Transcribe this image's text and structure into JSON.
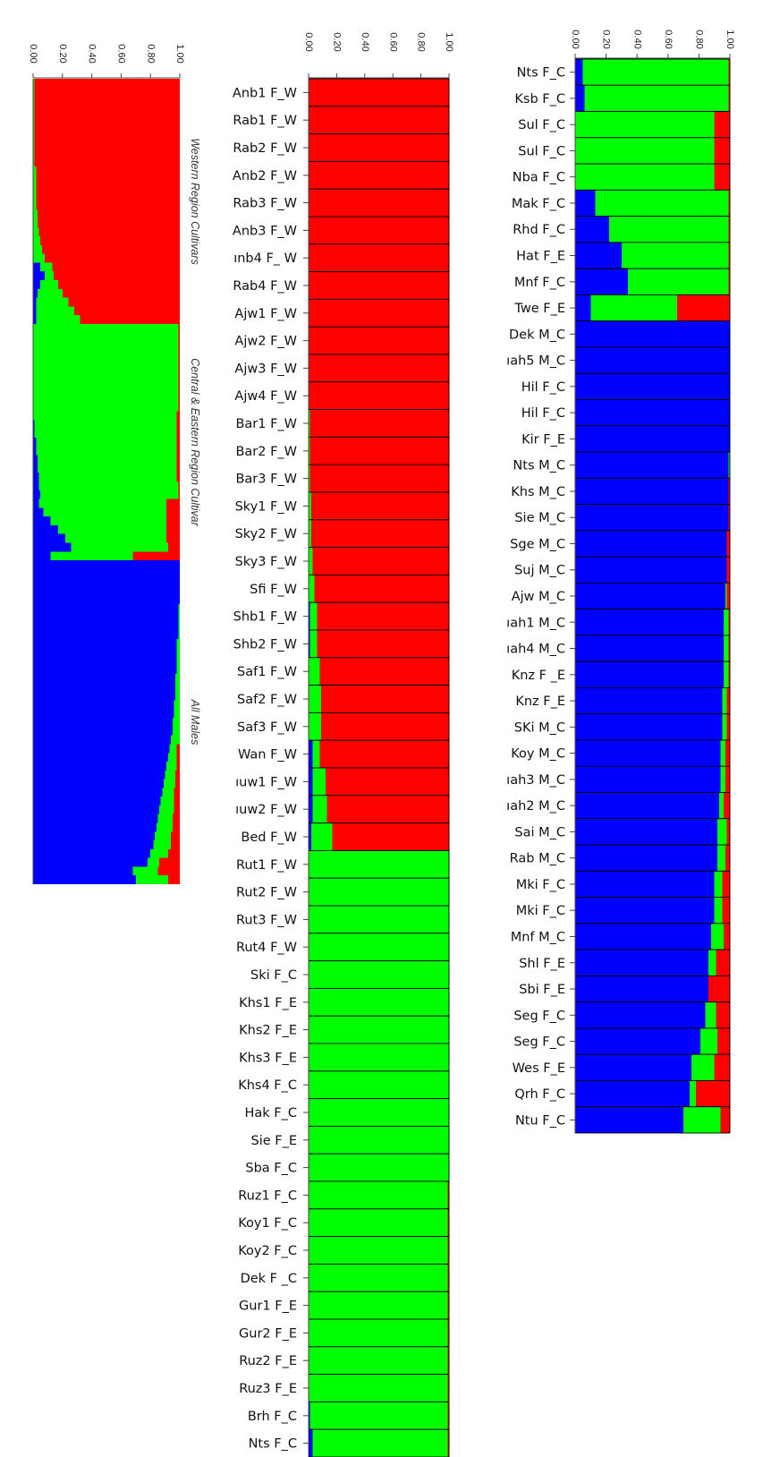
{
  "colors": {
    "blue": "#0000ff",
    "green": "#00ff00",
    "red": "#ff0000",
    "edge": "#000000"
  },
  "chart_data": [
    {
      "type": "bar",
      "orientation": "horizontal",
      "stacked": true,
      "xlim": [
        0,
        1
      ],
      "ticks": [
        "0.00",
        "0.20",
        "0.40",
        "0.60",
        "0.80",
        "1.00"
      ],
      "segment_order": [
        "blue",
        "green",
        "red"
      ],
      "regions": [
        {
          "label": "Western Region Cultivars",
          "start": 0,
          "end": 28
        },
        {
          "label": "Central & Eastern Region Cultivar",
          "start": 28,
          "end": 55
        },
        {
          "label": "All Males",
          "start": 55,
          "end": 92
        }
      ],
      "bars": [
        [
          0.0,
          0.01,
          0.99
        ],
        [
          0.0,
          0.01,
          0.99
        ],
        [
          0.0,
          0.01,
          0.99
        ],
        [
          0.0,
          0.01,
          0.99
        ],
        [
          0.0,
          0.01,
          0.99
        ],
        [
          0.0,
          0.01,
          0.99
        ],
        [
          0.0,
          0.01,
          0.99
        ],
        [
          0.0,
          0.01,
          0.99
        ],
        [
          0.0,
          0.01,
          0.99
        ],
        [
          0.0,
          0.01,
          0.99
        ],
        [
          0.0,
          0.02,
          0.98
        ],
        [
          0.0,
          0.02,
          0.98
        ],
        [
          0.0,
          0.02,
          0.98
        ],
        [
          0.0,
          0.02,
          0.98
        ],
        [
          0.0,
          0.02,
          0.98
        ],
        [
          0.0,
          0.03,
          0.97
        ],
        [
          0.0,
          0.03,
          0.97
        ],
        [
          0.0,
          0.04,
          0.96
        ],
        [
          0.0,
          0.05,
          0.95
        ],
        [
          0.0,
          0.06,
          0.94
        ],
        [
          0.0,
          0.08,
          0.92
        ],
        [
          0.05,
          0.08,
          0.87
        ],
        [
          0.08,
          0.06,
          0.86
        ],
        [
          0.05,
          0.12,
          0.83
        ],
        [
          0.03,
          0.17,
          0.8
        ],
        [
          0.02,
          0.22,
          0.76
        ],
        [
          0.02,
          0.26,
          0.72
        ],
        [
          0.02,
          0.3,
          0.68
        ],
        [
          0.0,
          0.99,
          0.01
        ],
        [
          0.0,
          0.99,
          0.01
        ],
        [
          0.0,
          0.99,
          0.01
        ],
        [
          0.0,
          0.99,
          0.01
        ],
        [
          0.0,
          0.99,
          0.01
        ],
        [
          0.0,
          0.99,
          0.01
        ],
        [
          0.0,
          0.99,
          0.01
        ],
        [
          0.0,
          0.99,
          0.01
        ],
        [
          0.0,
          0.99,
          0.01
        ],
        [
          0.0,
          0.99,
          0.01
        ],
        [
          0.0,
          0.98,
          0.02
        ],
        [
          0.01,
          0.97,
          0.02
        ],
        [
          0.01,
          0.97,
          0.02
        ],
        [
          0.02,
          0.96,
          0.02
        ],
        [
          0.02,
          0.96,
          0.02
        ],
        [
          0.03,
          0.95,
          0.02
        ],
        [
          0.03,
          0.95,
          0.02
        ],
        [
          0.04,
          0.94,
          0.02
        ],
        [
          0.04,
          0.95,
          0.01
        ],
        [
          0.05,
          0.94,
          0.01
        ],
        [
          0.04,
          0.87,
          0.09
        ],
        [
          0.07,
          0.84,
          0.09
        ],
        [
          0.12,
          0.79,
          0.09
        ],
        [
          0.17,
          0.74,
          0.09
        ],
        [
          0.22,
          0.69,
          0.09
        ],
        [
          0.26,
          0.66,
          0.08
        ],
        [
          0.12,
          0.56,
          0.32
        ],
        [
          1.0,
          0.0,
          0.0
        ],
        [
          1.0,
          0.0,
          0.0
        ],
        [
          1.0,
          0.0,
          0.0
        ],
        [
          1.0,
          0.0,
          0.0
        ],
        [
          1.0,
          0.0,
          0.0
        ],
        [
          0.99,
          0.01,
          0.0
        ],
        [
          0.99,
          0.01,
          0.0
        ],
        [
          0.99,
          0.01,
          0.0
        ],
        [
          0.99,
          0.01,
          0.0
        ],
        [
          0.98,
          0.02,
          0.0
        ],
        [
          0.98,
          0.02,
          0.0
        ],
        [
          0.98,
          0.02,
          0.0
        ],
        [
          0.98,
          0.02,
          0.0
        ],
        [
          0.97,
          0.03,
          0.0
        ],
        [
          0.97,
          0.03,
          0.0
        ],
        [
          0.97,
          0.03,
          0.0
        ],
        [
          0.96,
          0.04,
          0.0
        ],
        [
          0.96,
          0.04,
          0.0
        ],
        [
          0.95,
          0.05,
          0.0
        ],
        [
          0.95,
          0.05,
          0.0
        ],
        [
          0.94,
          0.06,
          0.0
        ],
        [
          0.93,
          0.05,
          0.02
        ],
        [
          0.92,
          0.06,
          0.02
        ],
        [
          0.91,
          0.07,
          0.02
        ],
        [
          0.9,
          0.07,
          0.03
        ],
        [
          0.89,
          0.08,
          0.03
        ],
        [
          0.88,
          0.08,
          0.04
        ],
        [
          0.87,
          0.09,
          0.04
        ],
        [
          0.86,
          0.1,
          0.04
        ],
        [
          0.85,
          0.1,
          0.05
        ],
        [
          0.84,
          0.11,
          0.05
        ],
        [
          0.83,
          0.11,
          0.06
        ],
        [
          0.82,
          0.12,
          0.06
        ],
        [
          0.8,
          0.12,
          0.08
        ],
        [
          0.78,
          0.08,
          0.14
        ],
        [
          0.68,
          0.17,
          0.15
        ],
        [
          0.7,
          0.22,
          0.08
        ]
      ]
    },
    {
      "type": "bar",
      "orientation": "horizontal",
      "stacked": true,
      "xlim": [
        0,
        1
      ],
      "ticks": [
        "0.00",
        "0.20",
        "0.40",
        "0.60",
        "0.80",
        "1.00"
      ],
      "segment_order": [
        "blue",
        "green",
        "red"
      ],
      "categories": [
        "Anb1 F_W",
        "Rab1 F_W",
        "Rab2 F_W",
        "Anb2 F_W",
        "Rab3 F_W",
        "Anb3 F_W",
        "ınb4 F_ W",
        "Rab4 F_W",
        "Ajw1 F_W",
        "Ajw2 F_W",
        "Ajw3 F_W",
        "Ajw4 F_W",
        "Bar1 F_W",
        "Bar2 F_W",
        "Bar3 F_W",
        "Sky1 F_W",
        "Sky2 F_W",
        "Sky3 F_W",
        "Sfi F_W",
        "Shb1 F_W",
        "Shb2 F_W",
        "Saf1 F_W",
        "Saf2 F_W",
        "Saf3 F_W",
        "Wan F_W",
        "ıuw1 F_W",
        "ıuw2 F_W",
        "Bed F_W",
        "Rut1 F_W",
        "Rut2 F_W",
        "Rut3 F_W",
        "Rut4 F_W",
        "Ski F_C",
        "Khs1 F_E",
        "Khs2 F_E",
        "Khs3 F_E",
        "Khs4 F_C",
        "Hak F_C",
        "Sie F_E",
        "Sba F_C",
        "Ruz1 F_C",
        "Koy1 F_C",
        "Koy2 F_C",
        "Dek F _C",
        "Gur1 F_E",
        "Gur2 F_E",
        "Ruz2 F_E",
        "Ruz3 F_E",
        "Brh F_C",
        "Nts F_C"
      ],
      "bars": [
        [
          0.0,
          0.0,
          1.0
        ],
        [
          0.0,
          0.0,
          1.0
        ],
        [
          0.0,
          0.0,
          1.0
        ],
        [
          0.0,
          0.0,
          1.0
        ],
        [
          0.0,
          0.0,
          1.0
        ],
        [
          0.0,
          0.0,
          1.0
        ],
        [
          0.0,
          0.0,
          1.0
        ],
        [
          0.0,
          0.0,
          1.0
        ],
        [
          0.0,
          0.0,
          1.0
        ],
        [
          0.0,
          0.0,
          1.0
        ],
        [
          0.0,
          0.0,
          1.0
        ],
        [
          0.0,
          0.0,
          1.0
        ],
        [
          0.0,
          0.01,
          0.99
        ],
        [
          0.0,
          0.01,
          0.99
        ],
        [
          0.0,
          0.01,
          0.99
        ],
        [
          0.0,
          0.02,
          0.98
        ],
        [
          0.0,
          0.02,
          0.98
        ],
        [
          0.0,
          0.03,
          0.97
        ],
        [
          0.0,
          0.04,
          0.96
        ],
        [
          0.01,
          0.05,
          0.94
        ],
        [
          0.01,
          0.05,
          0.94
        ],
        [
          0.0,
          0.08,
          0.92
        ],
        [
          0.0,
          0.09,
          0.91
        ],
        [
          0.0,
          0.09,
          0.91
        ],
        [
          0.03,
          0.05,
          0.92
        ],
        [
          0.03,
          0.09,
          0.88
        ],
        [
          0.03,
          0.1,
          0.87
        ],
        [
          0.02,
          0.15,
          0.83
        ],
        [
          0.0,
          1.0,
          0.0
        ],
        [
          0.0,
          1.0,
          0.0
        ],
        [
          0.0,
          1.0,
          0.0
        ],
        [
          0.0,
          1.0,
          0.0
        ],
        [
          0.0,
          1.0,
          0.0
        ],
        [
          0.0,
          1.0,
          0.0
        ],
        [
          0.0,
          1.0,
          0.0
        ],
        [
          0.0,
          1.0,
          0.0
        ],
        [
          0.0,
          1.0,
          0.0
        ],
        [
          0.0,
          1.0,
          0.0
        ],
        [
          0.0,
          1.0,
          0.0
        ],
        [
          0.0,
          1.0,
          0.0
        ],
        [
          0.0,
          0.99,
          0.01
        ],
        [
          0.0,
          0.99,
          0.01
        ],
        [
          0.0,
          0.99,
          0.01
        ],
        [
          0.0,
          0.99,
          0.01
        ],
        [
          0.0,
          0.99,
          0.01
        ],
        [
          0.0,
          0.99,
          0.01
        ],
        [
          0.0,
          0.99,
          0.01
        ],
        [
          0.0,
          0.99,
          0.01
        ],
        [
          0.01,
          0.98,
          0.01
        ],
        [
          0.03,
          0.96,
          0.01
        ]
      ]
    },
    {
      "type": "bar",
      "orientation": "horizontal",
      "stacked": true,
      "xlim": [
        0,
        1
      ],
      "ticks": [
        "0.00",
        "0.20",
        "0.40",
        "0.60",
        "0.80",
        "1.00"
      ],
      "segment_order": [
        "blue",
        "green",
        "red"
      ],
      "categories": [
        "Nts F_C",
        "Ksb F_C",
        "Sul F_C",
        "Sul F_C",
        "Nba F_C",
        "Mak F_C",
        "Rhd F_C",
        "Hat F_E",
        "Mnf F_C",
        "Twe F_E",
        "Dek M_C",
        "ıah5 M_C",
        "Hil F_C",
        "Hil F_C",
        "Kir F_E",
        "Nts M_C",
        "Khs M_C",
        "Sie M_C",
        "Sge M_C",
        "Suj M_C",
        "Ajw M_C",
        "ıah1 M_C",
        "ıah4 M_C",
        "Knz F _E",
        "Knz F_E",
        "SKi M_C",
        "Koy M_C",
        "ıah3 M_C",
        "ıah2 M_C",
        "Sai M_C",
        "Rab M_C",
        "Mki F_C",
        "Mki F_C",
        "Mnf M_C",
        "Shl F_E",
        "Sbi F_E",
        "Seg F_C",
        "Seg F_C",
        "Wes F_E",
        "Qrh F_C",
        "Ntu F_C"
      ],
      "bars": [
        [
          0.05,
          0.94,
          0.01
        ],
        [
          0.06,
          0.93,
          0.01
        ],
        [
          0.0,
          0.9,
          0.1
        ],
        [
          0.0,
          0.9,
          0.1
        ],
        [
          0.0,
          0.9,
          0.1
        ],
        [
          0.13,
          0.86,
          0.01
        ],
        [
          0.22,
          0.77,
          0.01
        ],
        [
          0.3,
          0.69,
          0.01
        ],
        [
          0.34,
          0.65,
          0.01
        ],
        [
          0.1,
          0.56,
          0.34
        ],
        [
          1.0,
          0.0,
          0.0
        ],
        [
          1.0,
          0.0,
          0.0
        ],
        [
          1.0,
          0.0,
          0.0
        ],
        [
          1.0,
          0.0,
          0.0
        ],
        [
          1.0,
          0.0,
          0.0
        ],
        [
          0.99,
          0.01,
          0.0
        ],
        [
          0.99,
          0.0,
          0.01
        ],
        [
          0.99,
          0.0,
          0.01
        ],
        [
          0.98,
          0.0,
          0.02
        ],
        [
          0.98,
          0.0,
          0.02
        ],
        [
          0.97,
          0.01,
          0.02
        ],
        [
          0.96,
          0.03,
          0.01
        ],
        [
          0.96,
          0.03,
          0.01
        ],
        [
          0.96,
          0.03,
          0.01
        ],
        [
          0.95,
          0.03,
          0.02
        ],
        [
          0.95,
          0.03,
          0.02
        ],
        [
          0.94,
          0.03,
          0.03
        ],
        [
          0.94,
          0.03,
          0.03
        ],
        [
          0.93,
          0.03,
          0.04
        ],
        [
          0.92,
          0.06,
          0.02
        ],
        [
          0.92,
          0.05,
          0.03
        ],
        [
          0.9,
          0.05,
          0.05
        ],
        [
          0.9,
          0.05,
          0.05
        ],
        [
          0.88,
          0.08,
          0.04
        ],
        [
          0.86,
          0.05,
          0.09
        ],
        [
          0.86,
          0.0,
          0.14
        ],
        [
          0.84,
          0.07,
          0.09
        ],
        [
          0.81,
          0.11,
          0.08
        ],
        [
          0.75,
          0.15,
          0.1
        ],
        [
          0.74,
          0.04,
          0.22
        ],
        [
          0.7,
          0.24,
          0.06
        ]
      ]
    }
  ]
}
